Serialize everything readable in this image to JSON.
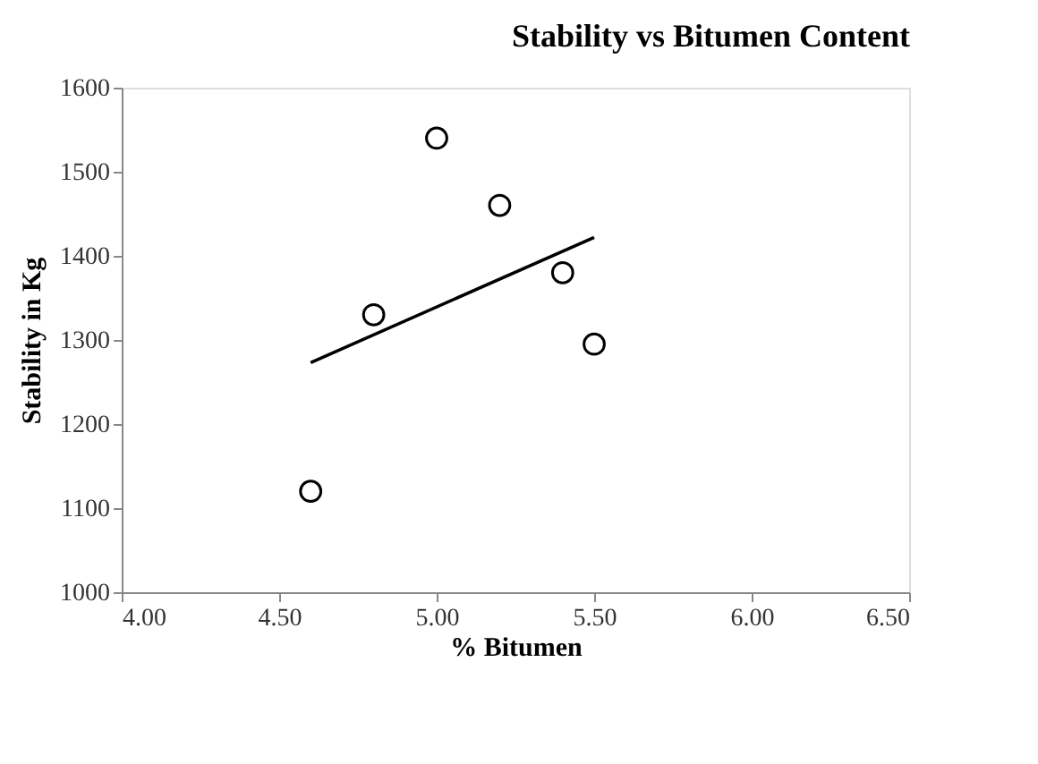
{
  "chart_data": {
    "type": "scatter",
    "title": "Stability vs Bitumen Content",
    "xlabel": "% Bitumen",
    "ylabel": "Stability in Kg",
    "xlim": [
      4.0,
      6.5
    ],
    "xticks": [
      {
        "value": 4.0,
        "label": "4.00"
      },
      {
        "value": 4.5,
        "label": "4.50"
      },
      {
        "value": 5.0,
        "label": "5.00"
      },
      {
        "value": 5.5,
        "label": "5.50"
      },
      {
        "value": 6.0,
        "label": "6.00"
      },
      {
        "value": 6.5,
        "label": "6.50"
      }
    ],
    "ylim": [
      1000,
      1600
    ],
    "yticks": [
      1000,
      1100,
      1200,
      1300,
      1400,
      1500,
      1600
    ],
    "grid": false,
    "series": [
      {
        "type": "scatter",
        "marker": "circle",
        "color": "#000000",
        "x": [
          4.6,
          4.8,
          5.0,
          5.2,
          5.4,
          5.5
        ],
        "values": [
          1120,
          1330,
          1540,
          1460,
          1380,
          1295
        ]
      },
      {
        "type": "line",
        "line_style": "solid",
        "marker": "none",
        "color": "#000000",
        "x": [
          4.6,
          5.5
        ],
        "values": [
          1273,
          1422
        ]
      }
    ]
  }
}
